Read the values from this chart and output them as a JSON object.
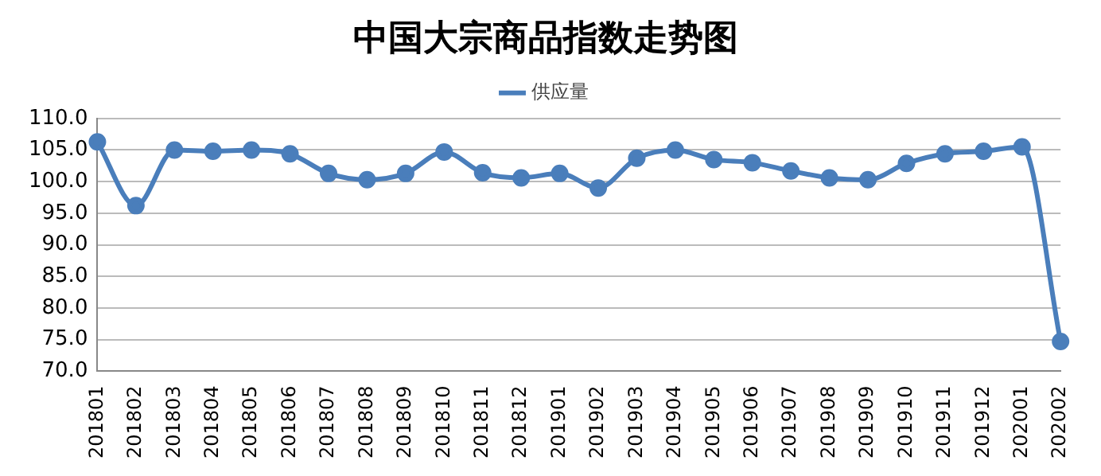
{
  "chart_data": {
    "type": "line",
    "title": "中国大宗商品指数走势图",
    "categories": [
      "201801",
      "201802",
      "201803",
      "201804",
      "201805",
      "201806",
      "201807",
      "201808",
      "201809",
      "201810",
      "201811",
      "201812",
      "201901",
      "201902",
      "201903",
      "201904",
      "201905",
      "201906",
      "201907",
      "201908",
      "201909",
      "201910",
      "201911",
      "201912",
      "202001",
      "202002"
    ],
    "series": [
      {
        "name": "供应量",
        "color": "#4a7ebb",
        "values": [
          106.3,
          96.2,
          105.0,
          104.8,
          105.0,
          104.4,
          101.3,
          100.3,
          101.3,
          104.7,
          101.4,
          100.6,
          101.3,
          99.0,
          103.7,
          105.0,
          103.5,
          103.0,
          101.7,
          100.6,
          100.3,
          102.9,
          104.4,
          104.8,
          105.5,
          74.7
        ]
      }
    ],
    "ylim": [
      70,
      110
    ],
    "yticks": [
      {
        "value": 70,
        "label": "70.0"
      },
      {
        "value": 75,
        "label": "75.0"
      },
      {
        "value": 80,
        "label": "80.0"
      },
      {
        "value": 85,
        "label": "85.0"
      },
      {
        "value": 90,
        "label": "90.0"
      },
      {
        "value": 95,
        "label": "95.0"
      },
      {
        "value": 100,
        "label": "100.0"
      },
      {
        "value": 105,
        "label": "105.0"
      },
      {
        "value": 110,
        "label": "110.0"
      }
    ],
    "grid": "y",
    "legend": "top",
    "marker": "circle",
    "line_style": "solid"
  }
}
